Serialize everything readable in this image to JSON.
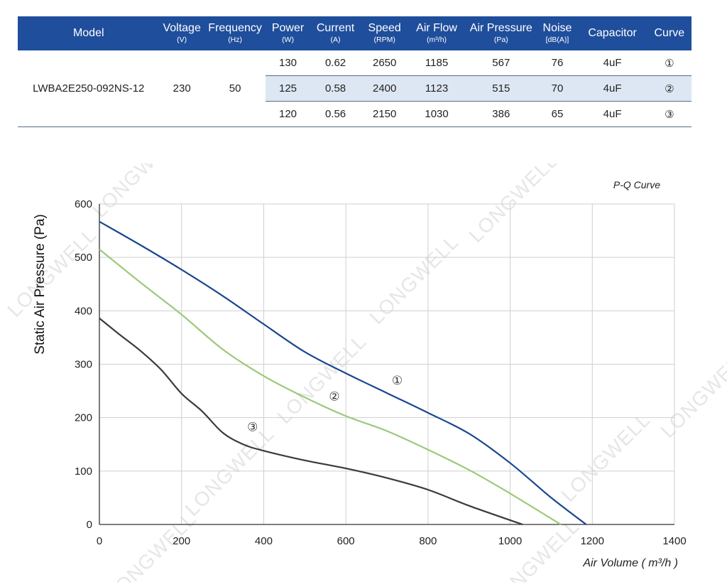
{
  "table": {
    "headers": [
      {
        "label": "Model",
        "unit": ""
      },
      {
        "label": "Voltage",
        "unit": "(V)"
      },
      {
        "label": "Frequency",
        "unit": "(Hz)"
      },
      {
        "label": "Power",
        "unit": "(W)"
      },
      {
        "label": "Current",
        "unit": "(A)"
      },
      {
        "label": "Speed",
        "unit": "(RPM)"
      },
      {
        "label": "Air Flow",
        "unit": "(m³/h)"
      },
      {
        "label": "Air Pressure",
        "unit": "(Pa)"
      },
      {
        "label": "Noise",
        "unit": "[dB(A)]"
      },
      {
        "label": "Capacitor",
        "unit": ""
      },
      {
        "label": "Curve",
        "unit": ""
      }
    ],
    "model": "LWBA2E250-092NS-12",
    "voltage": "230",
    "frequency": "50",
    "rows": [
      {
        "power": "130",
        "current": "0.62",
        "speed": "2650",
        "airflow": "1185",
        "pressure": "567",
        "noise": "76",
        "capacitor": "4uF",
        "curve": "①"
      },
      {
        "power": "125",
        "current": "0.58",
        "speed": "2400",
        "airflow": "1123",
        "pressure": "515",
        "noise": "70",
        "capacitor": "4uF",
        "curve": "②"
      },
      {
        "power": "120",
        "current": "0.56",
        "speed": "2150",
        "airflow": "1030",
        "pressure": "386",
        "noise": "65",
        "capacitor": "4uF",
        "curve": "③"
      }
    ]
  },
  "watermark": "LONGWELL",
  "chart_data": {
    "type": "line",
    "title": "P-Q Curve",
    "xlabel": "Air Volume ( m³/h )",
    "ylabel": "Static Air Pressure  (Pa)",
    "xlim": [
      0,
      1400
    ],
    "ylim": [
      0,
      600
    ],
    "xticks": [
      "0",
      "200",
      "400",
      "600",
      "800",
      "1000",
      "1200",
      "1400"
    ],
    "yticks": [
      "0",
      "100",
      "200",
      "300",
      "400",
      "500",
      "600"
    ],
    "grid": true,
    "series": [
      {
        "name": "①",
        "color": "#1a4791",
        "x": [
          0,
          100,
          200,
          300,
          400,
          500,
          600,
          700,
          800,
          900,
          1000,
          1100,
          1185
        ],
        "y": [
          567,
          523,
          477,
          428,
          375,
          323,
          283,
          246,
          209,
          170,
          115,
          50,
          0
        ],
        "label_at": [
          725,
          262
        ]
      },
      {
        "name": "②",
        "color": "#9dc97a",
        "x": [
          0,
          100,
          200,
          300,
          400,
          500,
          600,
          700,
          800,
          900,
          1000,
          1123
        ],
        "y": [
          515,
          453,
          393,
          328,
          278,
          238,
          203,
          175,
          140,
          102,
          58,
          0
        ],
        "label_at": [
          572,
          232
        ]
      },
      {
        "name": "③",
        "color": "#3a3a3a",
        "x": [
          0,
          50,
          100,
          150,
          200,
          250,
          300,
          350,
          400,
          500,
          600,
          700,
          800,
          900,
          1030
        ],
        "y": [
          386,
          355,
          325,
          290,
          245,
          212,
          172,
          150,
          138,
          120,
          105,
          87,
          65,
          35,
          0
        ],
        "label_at": [
          373,
          175
        ]
      }
    ]
  }
}
